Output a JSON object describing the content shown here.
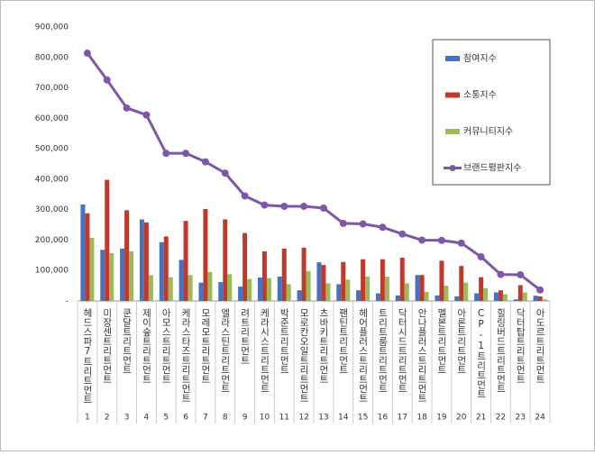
{
  "chart_data": {
    "type": "bar-line",
    "categories": [
      "헤드스파7트리트먼트",
      "미장센트리트먼트",
      "쿤달트리트먼트",
      "제이숲트리트먼트",
      "아모스트리트먼트",
      "케라스타즈트리트먼트",
      "모레모트리트먼트",
      "엘라스틴트리트먼트",
      "려트리트먼트",
      "케라시스트리트먼트",
      "박준트리트먼트",
      "모로칸오일트리트먼트",
      "츠바키트리트먼트",
      "팬틴트리트먼트",
      "헤어플러스트리트먼트",
      "트리트룸트리트먼트",
      "닥터시드트리트먼트",
      "안나플러스트리트먼트",
      "멜본트리트먼트",
      "아론트리트먼트",
      "CP-1트리트먼트",
      "힐링버드트리트먼트",
      "닥터탑트리트먼트",
      "아도르트리트먼트"
    ],
    "ranks": [
      1,
      2,
      3,
      4,
      5,
      6,
      7,
      8,
      9,
      10,
      11,
      12,
      13,
      14,
      15,
      16,
      17,
      18,
      19,
      20,
      21,
      22,
      23,
      24
    ],
    "series": [
      {
        "name": "참여지수",
        "color": "#4472c4",
        "kind": "bar",
        "values": [
          317000,
          168000,
          172000,
          268000,
          193000,
          135000,
          60000,
          62000,
          47000,
          77000,
          80000,
          35000,
          127000,
          55000,
          35000,
          25000,
          18000,
          85000,
          18000,
          15000,
          25000,
          28000,
          5000,
          17000
        ]
      },
      {
        "name": "소통지수",
        "color": "#c0392b",
        "kind": "bar",
        "values": [
          288000,
          398000,
          298000,
          258000,
          212000,
          263000,
          302000,
          268000,
          223000,
          163000,
          172000,
          175000,
          118000,
          128000,
          137000,
          137000,
          142000,
          85000,
          132000,
          115000,
          78000,
          35000,
          52000,
          15000
        ]
      },
      {
        "name": "커뮤니티지수",
        "color": "#9bbb59",
        "kind": "bar",
        "values": [
          207000,
          157000,
          163000,
          85000,
          78000,
          85000,
          95000,
          88000,
          72000,
          75000,
          55000,
          98000,
          58000,
          70000,
          80000,
          80000,
          58000,
          30000,
          50000,
          60000,
          42000,
          22000,
          28000,
          5000
        ]
      },
      {
        "name": "브랜드평판지수",
        "color": "#7e57a8",
        "kind": "line",
        "values": [
          814000,
          726000,
          634000,
          611000,
          485000,
          485000,
          457000,
          420000,
          345000,
          315000,
          311000,
          311000,
          305000,
          255000,
          253000,
          242000,
          220000,
          200000,
          199000,
          190000,
          145000,
          87000,
          86000,
          36000
        ]
      }
    ],
    "ylim": [
      0,
      900000
    ],
    "yticks": [
      {
        "value": 0,
        "label": "-"
      },
      {
        "value": 100000,
        "label": "100,000"
      },
      {
        "value": 200000,
        "label": "200,000"
      },
      {
        "value": 300000,
        "label": "300,000"
      },
      {
        "value": 400000,
        "label": "400,000"
      },
      {
        "value": 500000,
        "label": "500,000"
      },
      {
        "value": 600000,
        "label": "600,000"
      },
      {
        "value": 700000,
        "label": "700,000"
      },
      {
        "value": 800000,
        "label": "800,000"
      },
      {
        "value": 900000,
        "label": "900,000"
      }
    ],
    "legend": "upper right"
  }
}
